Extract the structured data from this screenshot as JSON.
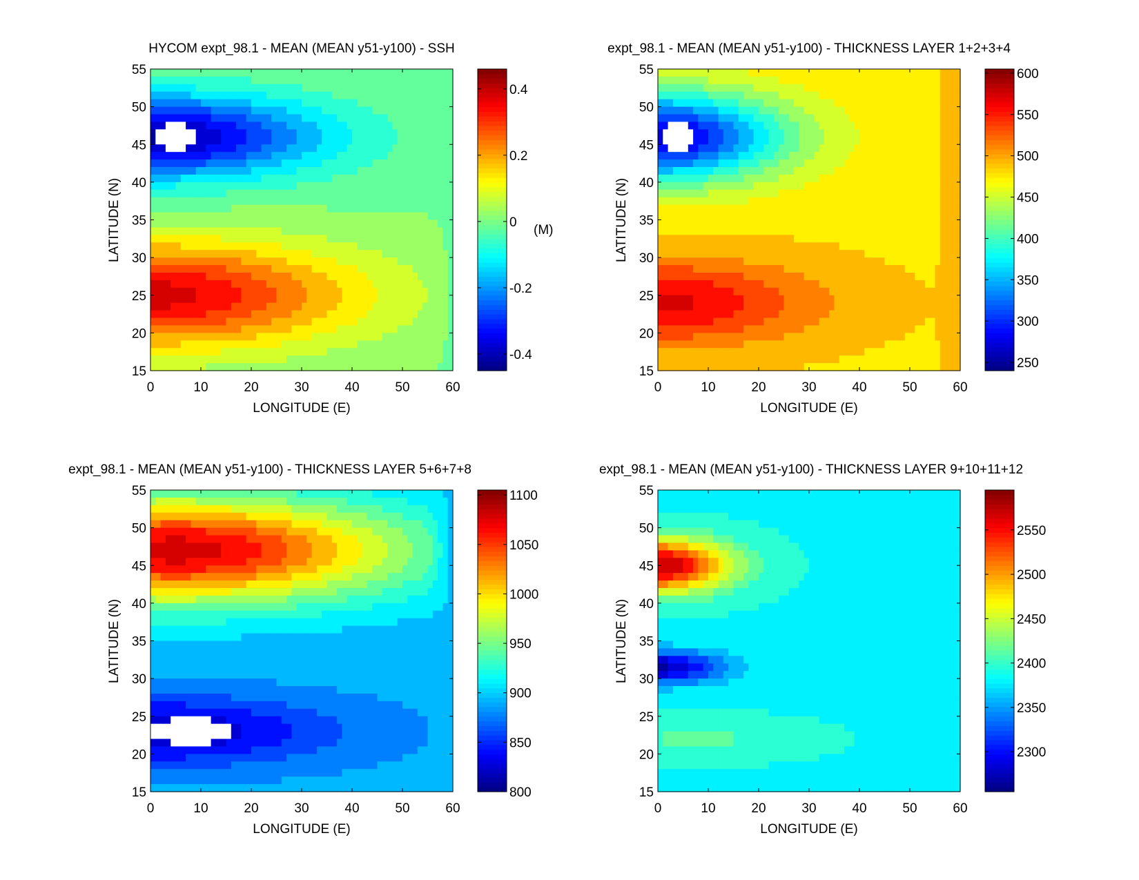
{
  "figure": {
    "xlabel": "LONGITUDE (E)",
    "ylabel": "LATITUDE (N)"
  },
  "chart_data": [
    {
      "type": "heatmap",
      "variant": "filled-contour",
      "title": "HYCOM expt_98.1 - MEAN (MEAN y51-y100) - SSH",
      "xlabel": "LONGITUDE (E)",
      "ylabel": "LATITUDE (N)",
      "xlim": [
        0,
        60
      ],
      "ylim": [
        15,
        55
      ],
      "xticks": [
        0,
        10,
        20,
        30,
        40,
        50,
        60
      ],
      "yticks": [
        15,
        20,
        25,
        30,
        35,
        40,
        45,
        50,
        55
      ],
      "colorbar": {
        "range": [
          -0.45,
          0.46
        ],
        "ticks": [
          -0.4,
          -0.2,
          0,
          0.2,
          0.4
        ],
        "tick_labels": [
          "-0.4",
          "-0.2",
          "0",
          "0.2",
          "0.4"
        ],
        "unit_label": "(M)",
        "colormap": "jet"
      },
      "field": {
        "background": 0.0,
        "east_boundary_value": 0.0,
        "features": [
          {
            "kind": "gyre",
            "lon": 0,
            "lat": 46,
            "value": -0.42,
            "zonal_scale": 33,
            "meridional_scale": 5.5
          },
          {
            "kind": "gyre",
            "lon": 0,
            "lat": 25,
            "value": 0.38,
            "zonal_scale": 40,
            "meridional_scale": 7
          }
        ],
        "missing_regions": [
          {
            "lon": 5,
            "lat": 46,
            "half_width_lon": 4,
            "half_height_lat": 1.8
          }
        ]
      }
    },
    {
      "type": "heatmap",
      "variant": "filled-contour",
      "title": "expt_98.1 - MEAN (MEAN y51-y100) - THICKNESS LAYER 1+2+3+4",
      "xlabel": "LONGITUDE (E)",
      "ylabel": "LATITUDE (N)",
      "xlim": [
        0,
        60
      ],
      "ylim": [
        15,
        55
      ],
      "xticks": [
        0,
        10,
        20,
        30,
        40,
        50,
        60
      ],
      "yticks": [
        15,
        20,
        25,
        30,
        35,
        40,
        45,
        50,
        55
      ],
      "colorbar": {
        "range": [
          240,
          605
        ],
        "ticks": [
          250,
          300,
          350,
          400,
          450,
          500,
          550,
          600
        ],
        "tick_labels": [
          "250",
          "300",
          "350",
          "400",
          "450",
          "500",
          "550",
          "600"
        ],
        "unit_label": "",
        "colormap": "jet"
      },
      "field": {
        "background": 480,
        "east_boundary_value": 500,
        "features": [
          {
            "kind": "gyre",
            "lon": 0,
            "lat": 46,
            "value": 270,
            "zonal_scale": 25,
            "meridional_scale": 6
          },
          {
            "kind": "gyre",
            "lon": 0,
            "lat": 24,
            "value": 570,
            "zonal_scale": 30,
            "meridional_scale": 5.5
          }
        ],
        "missing_regions": [
          {
            "lon": 4,
            "lat": 46,
            "half_width_lon": 3.2,
            "half_height_lat": 1.8
          }
        ]
      }
    },
    {
      "type": "heatmap",
      "variant": "filled-contour",
      "title": "expt_98.1 - MEAN (MEAN y51-y100) - THICKNESS LAYER 5+6+7+8",
      "xlabel": "LONGITUDE (E)",
      "ylabel": "LATITUDE (N)",
      "xlim": [
        0,
        60
      ],
      "ylim": [
        15,
        55
      ],
      "xticks": [
        0,
        10,
        20,
        30,
        40,
        50,
        60
      ],
      "yticks": [
        15,
        20,
        25,
        30,
        35,
        40,
        45,
        50,
        55
      ],
      "colorbar": {
        "range": [
          800,
          1105
        ],
        "ticks": [
          800,
          850,
          900,
          950,
          1000,
          1050,
          1100
        ],
        "tick_labels": [
          "800",
          "850",
          "900",
          "950",
          "1000",
          "1050",
          "1100"
        ],
        "unit_label": "",
        "colormap": "jet"
      },
      "field": {
        "background": 890,
        "east_boundary_value": 900,
        "features": [
          {
            "kind": "gyre",
            "lon": 5,
            "lat": 47,
            "value": 1080,
            "zonal_scale": 45,
            "meridional_scale": 7
          },
          {
            "kind": "gyre",
            "lon": 0,
            "lat": 23,
            "value": 815,
            "zonal_scale": 35,
            "meridional_scale": 4.5
          }
        ],
        "missing_regions": [
          {
            "lon": 8,
            "lat": 23,
            "half_width_lon": 8,
            "half_height_lat": 1.8
          }
        ]
      }
    },
    {
      "type": "heatmap",
      "variant": "filled-contour",
      "title": "expt_98.1 - MEAN (MEAN y51-y100) - THICKNESS LAYER 9+10+11+12",
      "xlabel": "LONGITUDE (E)",
      "ylabel": "LATITUDE (N)",
      "xlim": [
        0,
        60
      ],
      "ylim": [
        15,
        55
      ],
      "xticks": [
        0,
        10,
        20,
        30,
        40,
        50,
        60
      ],
      "yticks": [
        15,
        20,
        25,
        30,
        35,
        40,
        45,
        50,
        55
      ],
      "colorbar": {
        "range": [
          2255,
          2595
        ],
        "ticks": [
          2300,
          2350,
          2400,
          2450,
          2500,
          2550
        ],
        "tick_labels": [
          "2300",
          "2350",
          "2400",
          "2450",
          "2500",
          "2550"
        ],
        "unit_label": "",
        "colormap": "jet"
      },
      "field": {
        "background": 2385,
        "east_boundary_value": 2385,
        "features": [
          {
            "kind": "gyre",
            "lon": 0,
            "lat": 45,
            "value": 2580,
            "zonal_scale": 14,
            "meridional_scale": 3.5
          },
          {
            "kind": "gyre",
            "lon": 0,
            "lat": 31.5,
            "value": 2270,
            "zonal_scale": 13,
            "meridional_scale": 2.2
          },
          {
            "kind": "gyre",
            "lon": 8,
            "lat": 22,
            "value": 2410,
            "zonal_scale": 20,
            "meridional_scale": 2.5
          }
        ],
        "missing_regions": []
      }
    }
  ]
}
